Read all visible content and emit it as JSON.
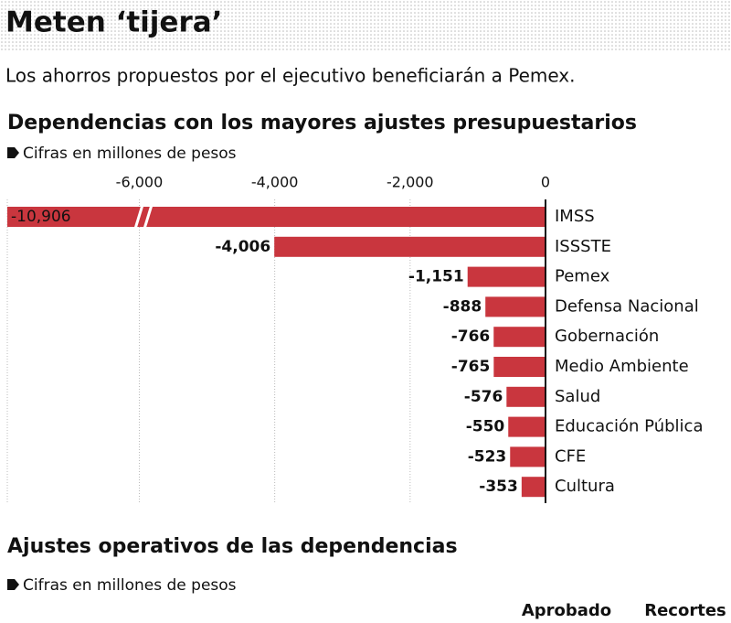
{
  "header": {
    "title": "Meten ‘tijera’",
    "subtitle": "Los ahorros propuestos por el ejecutivo beneficiarán a Pemex."
  },
  "chart_data": {
    "type": "hbar",
    "title": "Dependencias con los mayores ajustes presupuestarios",
    "note": "Cifras en millones de pesos",
    "categories": [
      "IMSS",
      "ISSSTE",
      "Pemex",
      "Defensa Nacional",
      "Gobernación",
      "Medio Ambiente",
      "Salud",
      "Educación Pública",
      "CFE",
      "Cultura"
    ],
    "values": [
      -10906,
      -4006,
      -1151,
      -888,
      -766,
      -765,
      -576,
      -550,
      -523,
      -353
    ],
    "value_labels": [
      "-10,906",
      "-4,006",
      "-1,151",
      "-888",
      "-766",
      "-765",
      "-576",
      "-550",
      "-523",
      "-353"
    ],
    "color": "#c9363e",
    "xlim": [
      -7950,
      0
    ],
    "xticks": [
      {
        "value": -6000,
        "label": "-6,000"
      },
      {
        "value": -4000,
        "label": "-4,000"
      },
      {
        "value": -2000,
        "label": "-2,000"
      },
      0
    ],
    "grid": true
  },
  "section2": {
    "title": "Ajustes operativos de las dependencias",
    "note": "Cifras en millones de pesos",
    "columns": [
      "Aprobado",
      "Recortes"
    ]
  }
}
